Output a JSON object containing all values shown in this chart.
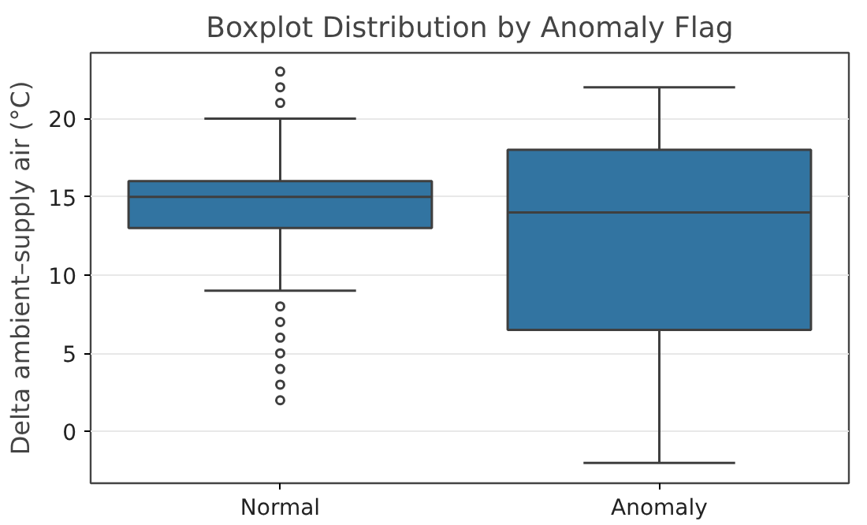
{
  "chart_data": {
    "type": "box",
    "title": "Boxplot Distribution by Anomaly Flag",
    "ylabel": "Delta ambient–supply air (°C)",
    "categories": [
      "Normal",
      "Anomaly"
    ],
    "series": [
      {
        "color": "#3274a1",
        "boxes": [
          {
            "low": 9,
            "q1": 13,
            "median": 15,
            "q3": 16,
            "high": 20,
            "outliers": [
              23,
              22,
              21,
              8,
              7,
              6,
              5,
              4,
              3,
              2
            ]
          },
          {
            "low": -2,
            "q1": 6.5,
            "median": 14,
            "q3": 18,
            "high": 22
          }
        ]
      }
    ],
    "ylim": [
      -3.3,
      24.2
    ],
    "yticks": [
      0,
      5,
      10,
      15,
      20
    ],
    "grid": "y"
  }
}
